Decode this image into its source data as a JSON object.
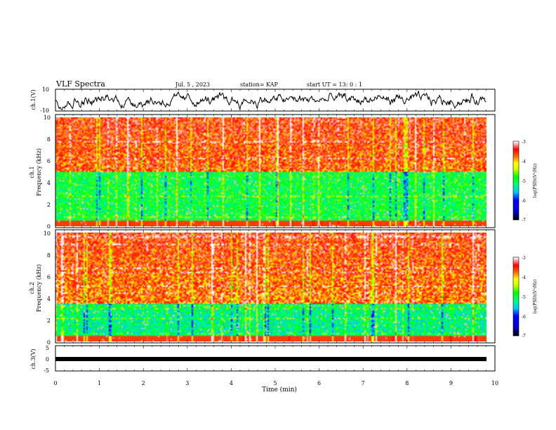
{
  "header": {
    "title": "VLF Spectra",
    "date": "Jul. 5 , 2023",
    "station": "station= KAP",
    "start_time": "start UT = 13: 0 : 1"
  },
  "chart_data": [
    {
      "id": "ch1-waveform",
      "type": "line",
      "ylabel": "ch.1(V)",
      "ylim": [
        -10,
        10
      ],
      "y_ticks": [
        "10",
        "-10"
      ],
      "xlim": [
        0,
        10
      ],
      "data_extent_min": 9.8
    },
    {
      "id": "ch1-spectrogram",
      "type": "heatmap",
      "ylabel": "ch.1\nFrequency (kHz)",
      "ylabel_line1": "ch.1",
      "ylabel_line2": "Frequency (kHz)",
      "ylim": [
        0,
        10
      ],
      "y_ticks": [
        "0",
        "2",
        "4",
        "6",
        "8",
        "10"
      ],
      "xlim": [
        0,
        10
      ],
      "colorbar": {
        "label": "log(PSD)(V²/Hz)",
        "min": -7,
        "max": -3,
        "ticks": [
          "-3",
          "-4",
          "-5",
          "-6",
          "-7"
        ]
      },
      "low_band_khz": [
        0,
        5
      ],
      "low_band_level": -5,
      "high_band_level": -3.7
    },
    {
      "id": "ch2-spectrogram",
      "type": "heatmap",
      "ylabel_line1": "ch.2",
      "ylabel_line2": "Frequency (kHz)",
      "ylim": [
        0,
        10
      ],
      "y_ticks": [
        "0",
        "2",
        "4",
        "6",
        "8",
        "10"
      ],
      "xlim": [
        0,
        10
      ],
      "colorbar": {
        "label": "log(PSD)(V²/Hz)",
        "min": -7,
        "max": -3,
        "ticks": [
          "-3",
          "-4",
          "-5",
          "-6",
          "-7"
        ]
      },
      "low_band_khz": [
        0,
        3.5
      ],
      "low_band_level": -5.2,
      "high_band_level": -3.8
    },
    {
      "id": "ch3-waveform",
      "type": "line",
      "ylabel": "ch.3(V)",
      "ylim": [
        -5,
        5
      ],
      "y_ticks": [
        "5",
        "0",
        "-5"
      ],
      "xlim": [
        0,
        10
      ],
      "level": -0.2,
      "data_extent_min": 9.8
    }
  ],
  "x_axis": {
    "label": "Time (min)",
    "ticks": [
      "0",
      "1",
      "2",
      "3",
      "4",
      "5",
      "6",
      "7",
      "8",
      "9",
      "10"
    ]
  },
  "colors": {
    "line": "#000000",
    "frame": "#000000",
    "colormap": [
      "#000000",
      "#0000ff",
      "#00ffff",
      "#00ff00",
      "#ffff00",
      "#ff8000",
      "#ff0000",
      "#ffffff"
    ]
  }
}
